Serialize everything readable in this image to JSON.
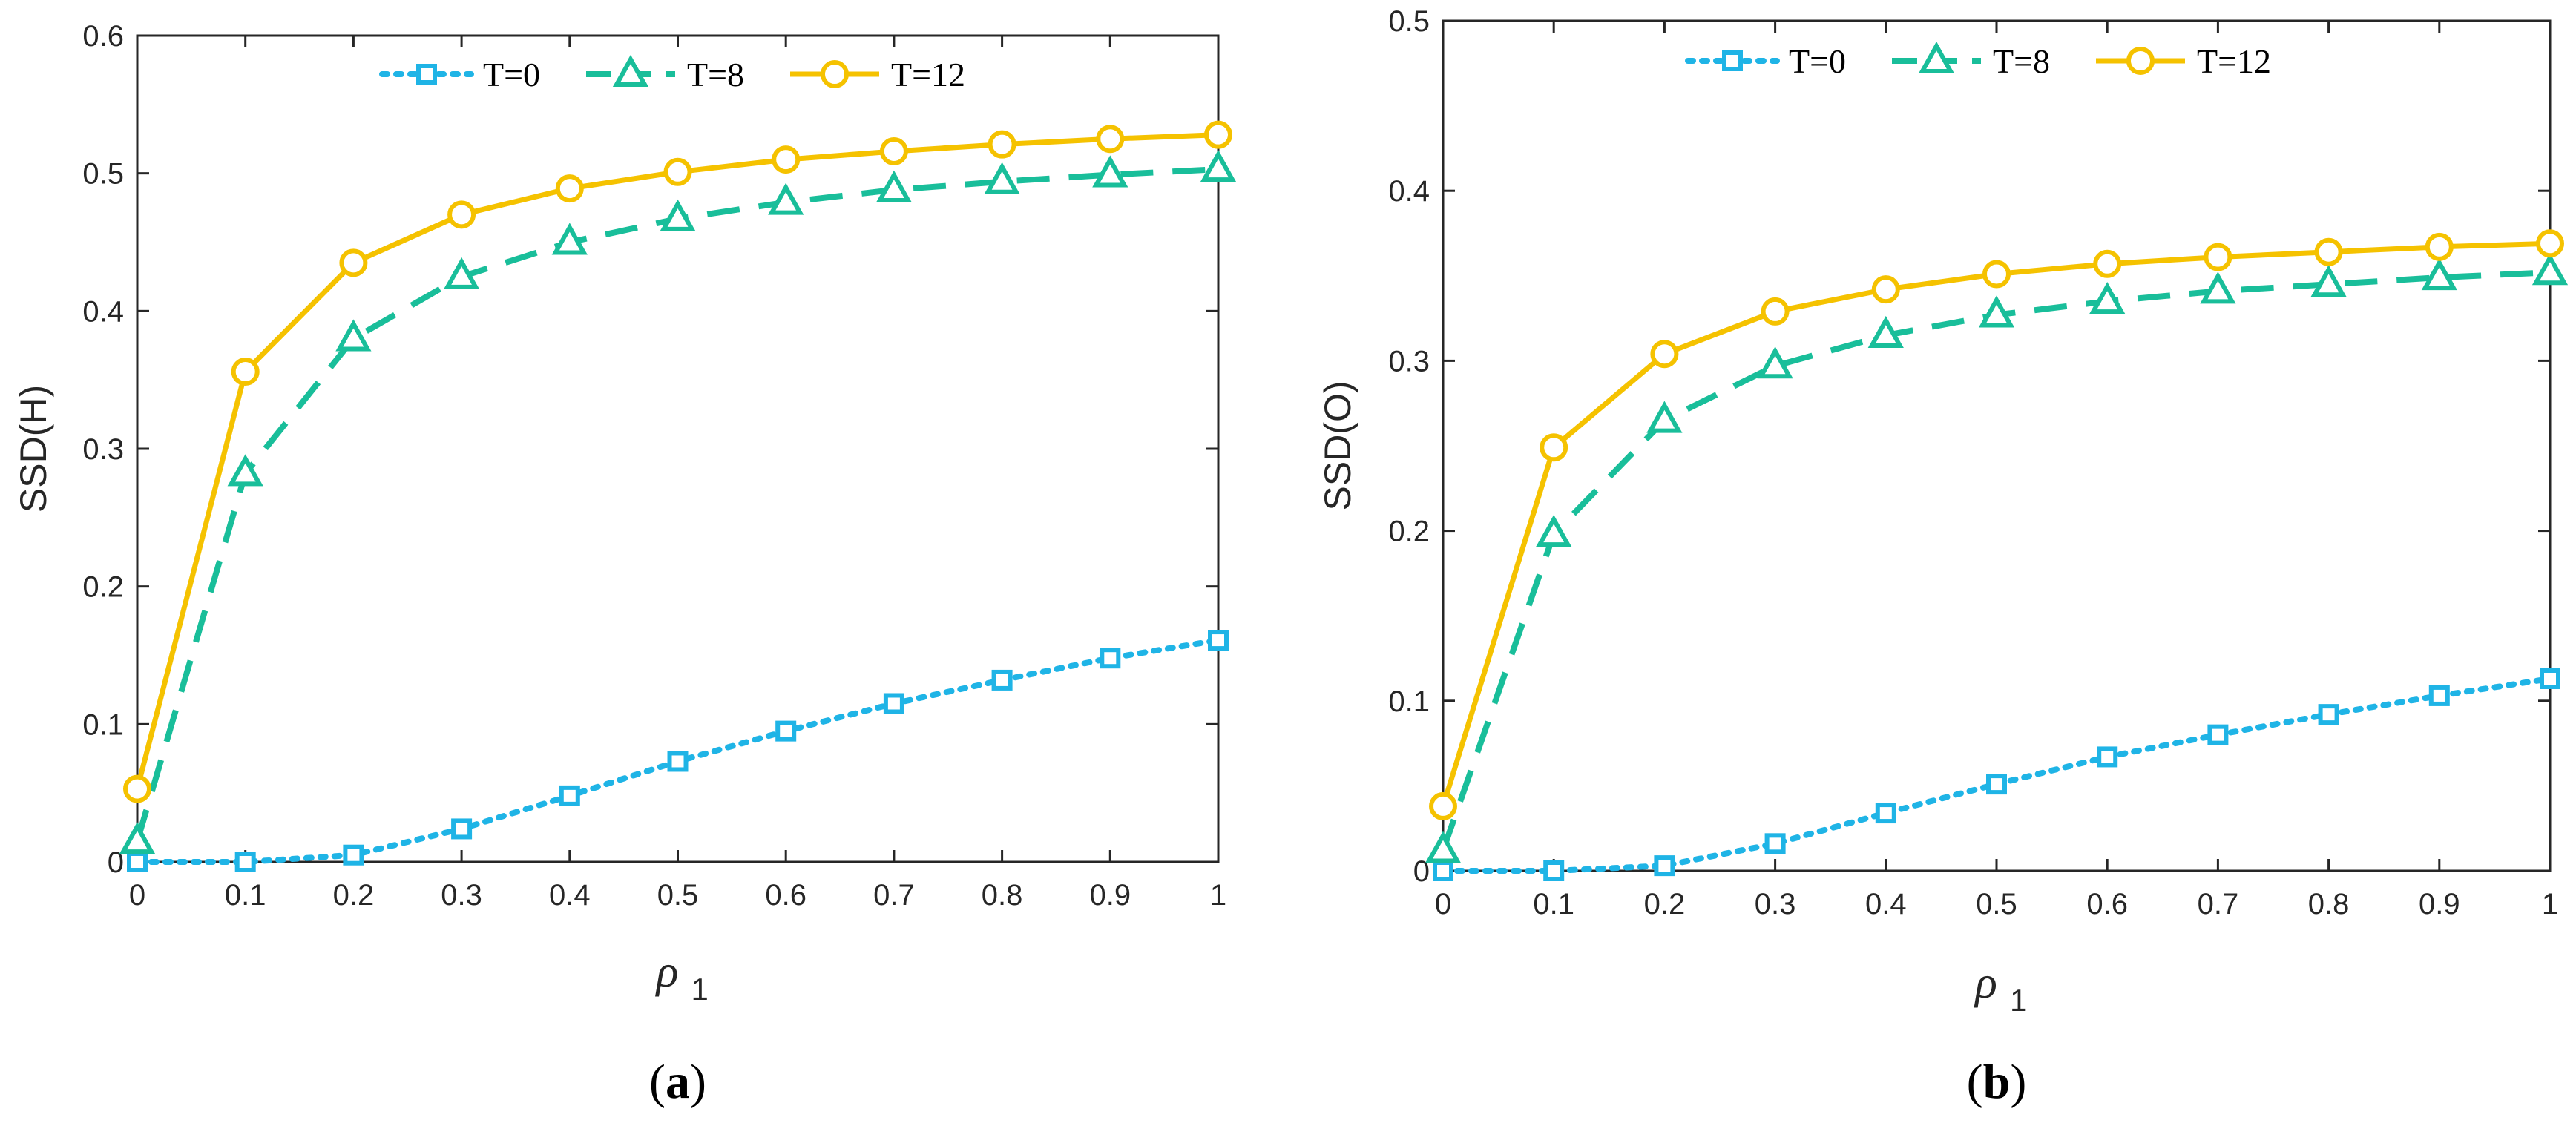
{
  "colors": {
    "T0": "#1fb4e6",
    "T8": "#19be9a",
    "T12": "#f5c200",
    "axis": "#262626"
  },
  "chart_data": [
    {
      "type": "line",
      "panel_label": "a",
      "xlabel": "ρ",
      "xlabel_sub": "1",
      "ylabel": "SSD(H)",
      "xlim": [
        0,
        1
      ],
      "ylim": [
        0,
        0.6
      ],
      "xticks": [
        0,
        0.1,
        0.2,
        0.3,
        0.4,
        0.5,
        0.6,
        0.7,
        0.8,
        0.9,
        1
      ],
      "xtick_labels": [
        "0",
        "0.1",
        "0.2",
        "0.3",
        "0.4",
        "0.5",
        "0.6",
        "0.7",
        "0.8",
        "0.9",
        "1"
      ],
      "yticks": [
        0,
        0.1,
        0.2,
        0.3,
        0.4,
        0.5,
        0.6
      ],
      "ytick_labels": [
        "0",
        "0.1",
        "0.2",
        "0.3",
        "0.4",
        "0.5",
        "0.6"
      ],
      "legend_position": "top",
      "x": [
        0,
        0.1,
        0.2,
        0.3,
        0.4,
        0.5,
        0.6,
        0.7,
        0.8,
        0.9,
        1
      ],
      "series": [
        {
          "name": "T=0",
          "key": "T0",
          "style": "dotted",
          "marker": "square",
          "values": [
            0,
            0,
            0.005,
            0.024,
            0.048,
            0.073,
            0.095,
            0.115,
            0.132,
            0.148,
            0.161
          ]
        },
        {
          "name": "T=8",
          "key": "T8",
          "style": "dashed",
          "marker": "triangle",
          "values": [
            0.015,
            0.282,
            0.38,
            0.425,
            0.45,
            0.467,
            0.479,
            0.488,
            0.494,
            0.499,
            0.503
          ]
        },
        {
          "name": "T=12",
          "key": "T12",
          "style": "solid",
          "marker": "circle",
          "values": [
            0.053,
            0.356,
            0.435,
            0.47,
            0.489,
            0.501,
            0.51,
            0.516,
            0.521,
            0.525,
            0.528
          ]
        }
      ]
    },
    {
      "type": "line",
      "panel_label": "b",
      "xlabel": "ρ",
      "xlabel_sub": "1",
      "ylabel": "SSD(O)",
      "xlim": [
        0,
        1
      ],
      "ylim": [
        0,
        0.5
      ],
      "xticks": [
        0,
        0.1,
        0.2,
        0.3,
        0.4,
        0.5,
        0.6,
        0.7,
        0.8,
        0.9,
        1
      ],
      "xtick_labels": [
        "0",
        "0.1",
        "0.2",
        "0.3",
        "0.4",
        "0.5",
        "0.6",
        "0.7",
        "0.8",
        "0.9",
        "1"
      ],
      "yticks": [
        0,
        0.1,
        0.2,
        0.3,
        0.4,
        0.5
      ],
      "ytick_labels": [
        "0",
        "0.1",
        "0.2",
        "0.3",
        "0.4",
        "0.5"
      ],
      "legend_position": "top",
      "x": [
        0,
        0.1,
        0.2,
        0.3,
        0.4,
        0.5,
        0.6,
        0.7,
        0.8,
        0.9,
        1
      ],
      "series": [
        {
          "name": "T=0",
          "key": "T0",
          "style": "dotted",
          "marker": "square",
          "values": [
            0,
            0,
            0.003,
            0.016,
            0.034,
            0.051,
            0.067,
            0.08,
            0.092,
            0.103,
            0.113
          ]
        },
        {
          "name": "T=8",
          "key": "T8",
          "style": "dashed",
          "marker": "triangle",
          "values": [
            0.012,
            0.198,
            0.265,
            0.297,
            0.315,
            0.327,
            0.335,
            0.341,
            0.345,
            0.349,
            0.352
          ]
        },
        {
          "name": "T=12",
          "key": "T12",
          "style": "solid",
          "marker": "circle",
          "values": [
            0.038,
            0.249,
            0.304,
            0.329,
            0.342,
            0.351,
            0.357,
            0.361,
            0.364,
            0.367,
            0.369
          ]
        }
      ]
    }
  ]
}
